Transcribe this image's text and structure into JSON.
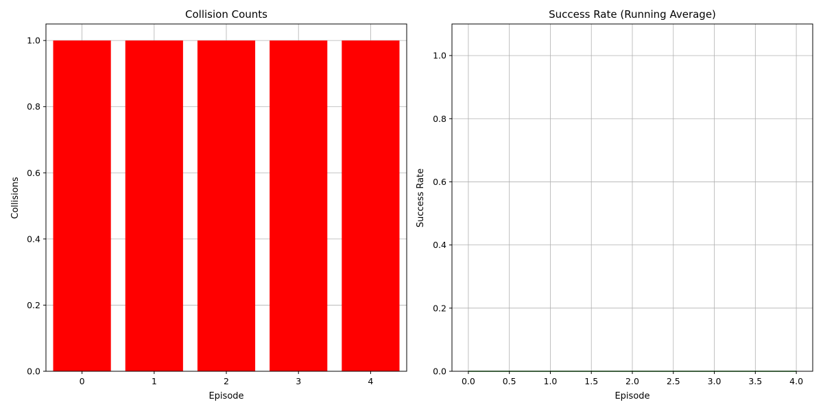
{
  "chart_data": [
    {
      "type": "bar",
      "title": "Collision Counts",
      "xlabel": "Episode",
      "ylabel": "Collisions",
      "categories": [
        "0",
        "1",
        "2",
        "3",
        "4"
      ],
      "values": [
        1,
        1,
        1,
        1,
        1
      ],
      "xlim": [
        -0.5,
        4.5
      ],
      "ylim": [
        0,
        1.05
      ],
      "xticks": [
        0,
        1,
        2,
        3,
        4
      ],
      "yticks": [
        0.0,
        0.2,
        0.4,
        0.6,
        0.8,
        1.0
      ],
      "xtick_labels": [
        "0",
        "1",
        "2",
        "3",
        "4"
      ],
      "ytick_labels": [
        "0.0",
        "0.2",
        "0.4",
        "0.6",
        "0.8",
        "1.0"
      ],
      "bar_color": "#ff0000",
      "grid": true
    },
    {
      "type": "line",
      "title": "Success Rate (Running Average)",
      "xlabel": "Episode",
      "ylabel": "Success Rate",
      "x": [
        0,
        1,
        2,
        3,
        4
      ],
      "y": [
        0,
        0,
        0,
        0,
        0
      ],
      "xlim": [
        -0.2,
        4.2
      ],
      "ylim": [
        0,
        1.1
      ],
      "xticks": [
        0.0,
        0.5,
        1.0,
        1.5,
        2.0,
        2.5,
        3.0,
        3.5,
        4.0
      ],
      "yticks": [
        0.0,
        0.2,
        0.4,
        0.6,
        0.8,
        1.0
      ],
      "xtick_labels": [
        "0.0",
        "0.5",
        "1.0",
        "1.5",
        "2.0",
        "2.5",
        "3.0",
        "3.5",
        "4.0"
      ],
      "ytick_labels": [
        "0.0",
        "0.2",
        "0.4",
        "0.6",
        "0.8",
        "1.0"
      ],
      "line_color": "#008000",
      "grid": true
    }
  ]
}
